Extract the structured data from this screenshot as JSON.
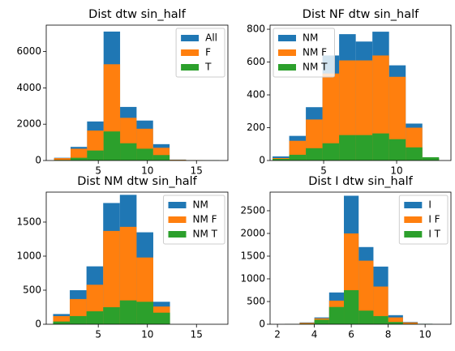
{
  "chart_data": [
    {
      "type": "histogram",
      "title": "Dist dtw sin_half",
      "bins": [
        0.5,
        2.18,
        3.86,
        5.54,
        7.22,
        8.9,
        10.58,
        12.26,
        13.94,
        15.62,
        17.3
      ],
      "series": [
        {
          "name": "All",
          "color": "#1f77b4",
          "values": [
            150,
            750,
            2150,
            7100,
            2950,
            2200,
            900,
            50,
            20,
            10
          ]
        },
        {
          "name": "F",
          "color": "#ff7f0e",
          "values": [
            130,
            650,
            1650,
            5300,
            2350,
            1750,
            700,
            40,
            15,
            5
          ]
        },
        {
          "name": "T",
          "color": "#2ca02c",
          "values": [
            30,
            150,
            550,
            1600,
            950,
            650,
            300,
            20,
            5,
            5
          ]
        }
      ],
      "xlim": [
        -0.3,
        18.2
      ],
      "ylim": [
        0,
        7455
      ],
      "xticks": [
        5,
        10,
        15
      ],
      "yticks": [
        0,
        2000,
        4000,
        6000
      ],
      "legend": "upper right"
    },
    {
      "type": "histogram",
      "title": "Dist NF dtw sin_half",
      "bins": [
        1.5,
        2.64,
        3.78,
        4.92,
        6.06,
        7.2,
        8.34,
        9.48,
        10.62,
        11.76,
        12.9
      ],
      "series": [
        {
          "name": "NM",
          "color": "#1f77b4",
          "values": [
            25,
            150,
            325,
            640,
            770,
            725,
            785,
            580,
            225,
            15
          ]
        },
        {
          "name": "NM F",
          "color": "#ff7f0e",
          "values": [
            15,
            120,
            250,
            530,
            610,
            610,
            640,
            510,
            200,
            10
          ]
        },
        {
          "name": "NM T",
          "color": "#2ca02c",
          "values": [
            10,
            35,
            75,
            105,
            155,
            155,
            165,
            130,
            80,
            20
          ]
        }
      ],
      "xlim": [
        1.33,
        13.72
      ],
      "ylim": [
        0,
        825
      ],
      "xticks": [
        5,
        10
      ],
      "yticks": [
        0,
        200,
        400,
        600,
        800
      ],
      "legend": "upper left"
    },
    {
      "type": "histogram",
      "title": "Dist NM dtw sin_half",
      "bins": [
        0.4,
        2.1,
        3.8,
        5.5,
        7.2,
        8.9,
        10.6,
        12.3
      ],
      "series": [
        {
          "name": "NM",
          "color": "#1f77b4",
          "values": [
            150,
            500,
            850,
            1780,
            1900,
            1350,
            330
          ]
        },
        {
          "name": "NM F",
          "color": "#ff7f0e",
          "values": [
            120,
            370,
            580,
            1370,
            1430,
            980,
            260
          ]
        },
        {
          "name": "NM T",
          "color": "#2ca02c",
          "values": [
            40,
            120,
            190,
            250,
            350,
            330,
            170
          ]
        }
      ],
      "xlim": [
        -0.3,
        18.2
      ],
      "ylim": [
        0,
        1940
      ],
      "xticks": [
        5,
        10,
        15
      ],
      "yticks": [
        0,
        500,
        1000,
        1500
      ],
      "legend": "upper right"
    },
    {
      "type": "histogram",
      "title": "Dist I dtw sin_half",
      "bins": [
        2.4,
        3.2,
        4.0,
        4.8,
        5.6,
        6.4,
        7.2,
        8.0,
        8.8,
        9.6,
        10.4
      ],
      "series": [
        {
          "name": "I",
          "color": "#1f77b4",
          "values": [
            5,
            40,
            150,
            700,
            2830,
            1700,
            1270,
            200,
            50,
            10
          ]
        },
        {
          "name": "I F",
          "color": "#ff7f0e",
          "values": [
            3,
            30,
            130,
            520,
            2000,
            1400,
            830,
            150,
            40,
            5
          ]
        },
        {
          "name": "I T",
          "color": "#2ca02c",
          "values": [
            2,
            10,
            100,
            380,
            750,
            300,
            180,
            50,
            10,
            5
          ]
        }
      ],
      "xlim": [
        1.6,
        11.4
      ],
      "ylim": [
        0,
        2910
      ],
      "xticks": [
        2,
        4,
        6,
        8,
        10
      ],
      "yticks": [
        0,
        500,
        1000,
        1500,
        2000,
        2500
      ],
      "legend": "upper right"
    }
  ]
}
